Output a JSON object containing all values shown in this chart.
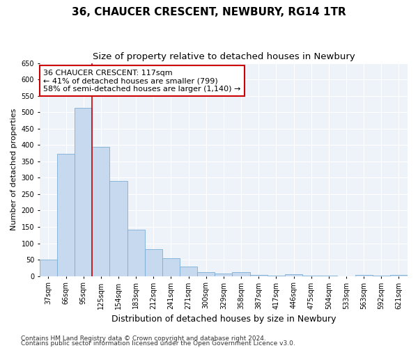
{
  "title": "36, CHAUCER CRESCENT, NEWBURY, RG14 1TR",
  "subtitle": "Size of property relative to detached houses in Newbury",
  "xlabel": "Distribution of detached houses by size in Newbury",
  "ylabel": "Number of detached properties",
  "categories": [
    "37sqm",
    "66sqm",
    "95sqm",
    "125sqm",
    "154sqm",
    "183sqm",
    "212sqm",
    "241sqm",
    "271sqm",
    "300sqm",
    "329sqm",
    "358sqm",
    "387sqm",
    "417sqm",
    "446sqm",
    "475sqm",
    "504sqm",
    "533sqm",
    "563sqm",
    "592sqm",
    "621sqm"
  ],
  "values": [
    50,
    373,
    513,
    395,
    291,
    142,
    83,
    54,
    29,
    12,
    8,
    11,
    4,
    1,
    5,
    1,
    1,
    0,
    4,
    1,
    4
  ],
  "bar_color": "#c6d9ef",
  "bar_edge_color": "#7aadd4",
  "vline_color": "#cc0000",
  "vline_x_index": 2.5,
  "annotation_text": "36 CHAUCER CRESCENT: 117sqm\n← 41% of detached houses are smaller (799)\n58% of semi-detached houses are larger (1,140) →",
  "annotation_box_color": "#cc0000",
  "annotation_fill": "white",
  "ylim": [
    0,
    650
  ],
  "yticks": [
    0,
    50,
    100,
    150,
    200,
    250,
    300,
    350,
    400,
    450,
    500,
    550,
    600,
    650
  ],
  "footer1": "Contains HM Land Registry data © Crown copyright and database right 2024.",
  "footer2": "Contains public sector information licensed under the Open Government Licence v3.0.",
  "bg_color": "#eef2f9",
  "grid_color": "#ffffff",
  "title_fontsize": 11,
  "subtitle_fontsize": 9.5,
  "ylabel_fontsize": 8,
  "xlabel_fontsize": 9,
  "tick_fontsize": 7,
  "annotation_fontsize": 8,
  "footer_fontsize": 6.5
}
